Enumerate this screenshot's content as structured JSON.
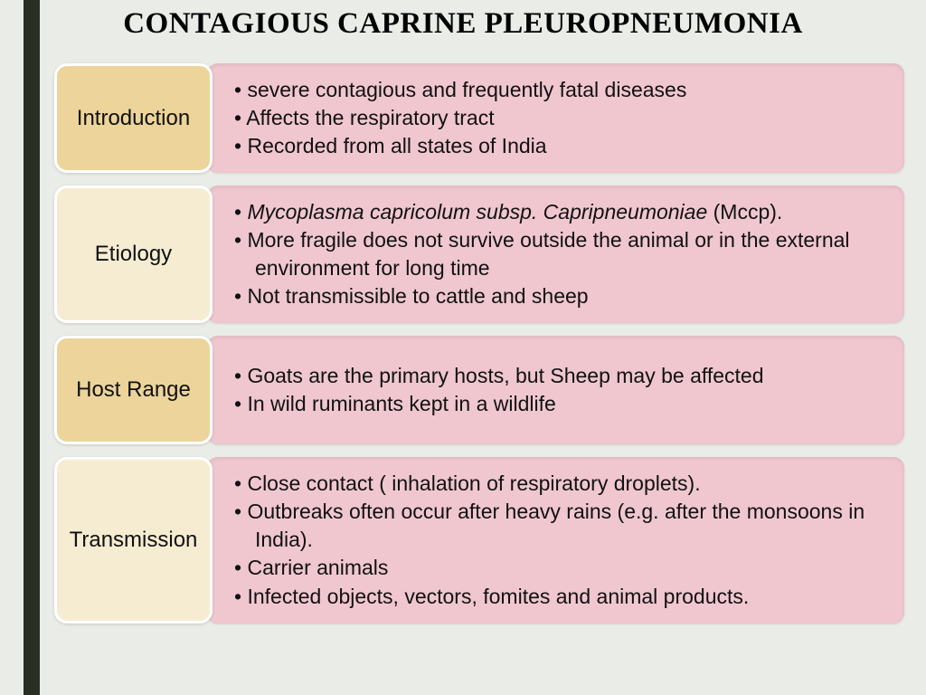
{
  "title": "CONTAGIOUS CAPRINE PLEUROPNEUMONIA",
  "colors": {
    "background": "#e9ece7",
    "vbar": "#2a2f25",
    "label_strong": "#ecd49a",
    "label_light": "#f6ecd2",
    "content_bg": "#f0c7cf"
  },
  "rows": [
    {
      "label": "Introduction",
      "label_bg": "strong",
      "bullets": [
        {
          "text": "severe contagious and frequently fatal diseases"
        },
        {
          "text": "Affects the respiratory tract"
        },
        {
          "text": "Recorded from all states of India"
        }
      ]
    },
    {
      "label": "Etiology",
      "label_bg": "light",
      "bullets": [
        {
          "italic": "Mycoplasma capricolum subsp. Capripneumoniae",
          "tail": "  (Mccp)."
        },
        {
          "text": "More fragile does not survive outside the animal or in the external environment for long time"
        },
        {
          "text": "Not transmissible to cattle and sheep"
        }
      ]
    },
    {
      "label": "Host Range",
      "label_bg": "strong",
      "bullets": [
        {
          "text": "Goats are the primary hosts, but Sheep may be affected"
        },
        {
          "text": "In wild ruminants kept in a wildlife"
        }
      ]
    },
    {
      "label": "Transmission",
      "label_bg": "light",
      "bullets": [
        {
          "text": "Close contact ( inhalation of respiratory droplets)."
        },
        {
          "text": "Outbreaks often occur after heavy rains (e.g. after the monsoons in India)."
        },
        {
          "text": "Carrier animals"
        },
        {
          "text": "Infected objects, vectors, fomites and animal products."
        }
      ]
    }
  ]
}
